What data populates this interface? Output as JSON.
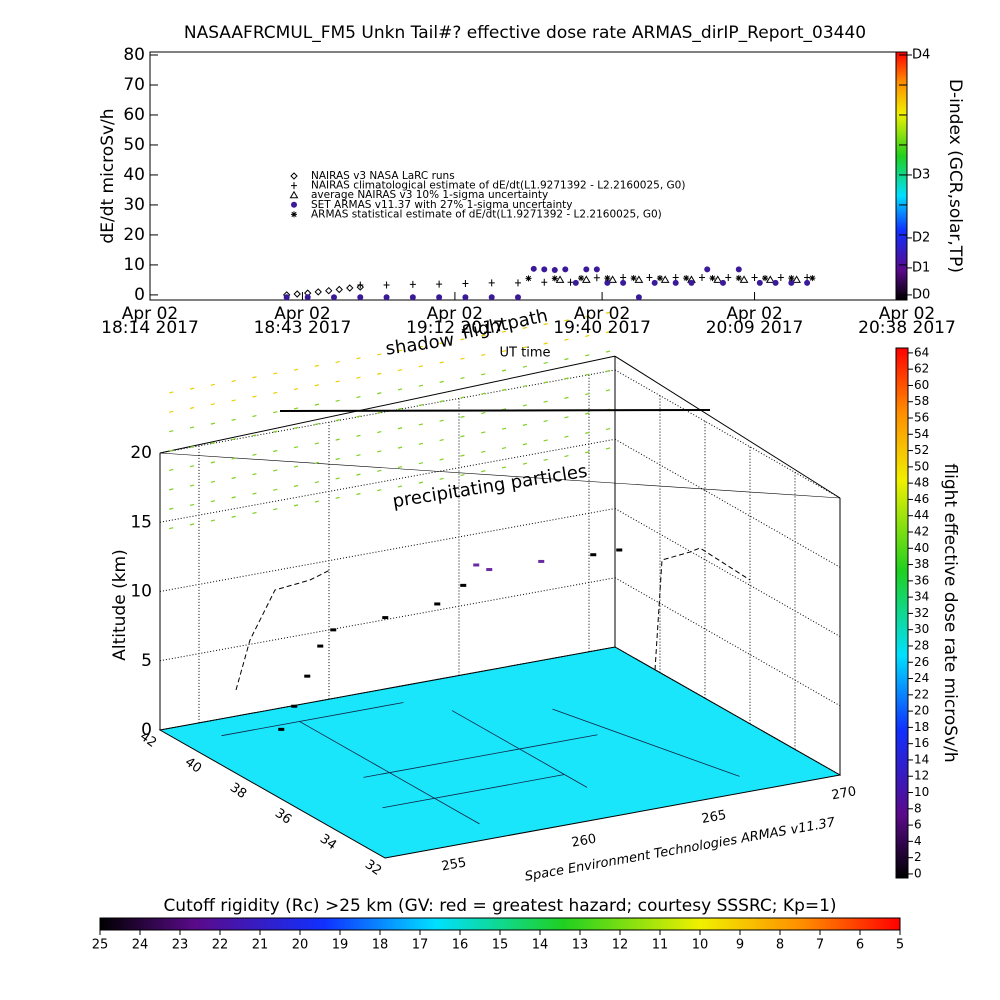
{
  "chart_data": [
    {
      "type": "line",
      "title": "NASAAFRCMUL_FM5 Unkn Tail#? effective dose rate ARMAS_dirIP_Report_03440",
      "y_label": "dE/dt microSv/h",
      "x_label": "UT time",
      "xlim": [
        0,
        144
      ],
      "xticks": [
        {
          "value": 0,
          "label": [
            "Apr 02",
            "18:14 2017"
          ]
        },
        {
          "value": 29,
          "label": [
            "Apr 02",
            "18:43 2017"
          ]
        },
        {
          "value": 58,
          "label": [
            "Apr 02",
            "19:12 2017"
          ]
        },
        {
          "value": 86,
          "label": [
            "Apr 02",
            "19:40 2017"
          ]
        },
        {
          "value": 115,
          "label": [
            "Apr 02",
            "20:09 2017"
          ]
        },
        {
          "value": 144,
          "label": [
            "Apr 02",
            "20:38 2017"
          ]
        }
      ],
      "ylim": [
        -1.7,
        81
      ],
      "yticks": [
        0,
        10,
        20,
        30,
        40,
        50,
        60,
        70,
        80
      ],
      "legend": "center",
      "series": [
        {
          "name": "NAIRAS v3 NASA LaRC runs",
          "marker": "diamond",
          "color": "#000000",
          "x": [
            26,
            28,
            30,
            32,
            34,
            36,
            38,
            40
          ],
          "values": [
            0,
            0.3,
            0.6,
            1,
            1.4,
            1.8,
            2.3,
            2.6
          ]
        },
        {
          "name": "NAIRAS climatological estimate of dE/dt(L1.9271392 - L2.2160025, G0)",
          "marker": "plus",
          "color": "#000000",
          "x": [
            40,
            45,
            50,
            55,
            60,
            65,
            70,
            75,
            80,
            85,
            90,
            95,
            100,
            105,
            110,
            115,
            120,
            125
          ],
          "values": [
            3.3,
            3.3,
            3.5,
            3.6,
            3.8,
            4,
            4,
            4.2,
            4.2,
            5.7,
            5.8,
            5.8,
            5.8,
            5.8,
            5.8,
            5.8,
            5.8,
            5.8
          ]
        },
        {
          "name": "average NAIRAS v3 10% 1-sigma uncertainty",
          "marker": "triangle",
          "color": "#000000",
          "x": [
            78,
            83,
            88,
            93,
            98,
            103,
            108,
            113,
            118,
            123
          ],
          "values": [
            5,
            5,
            5,
            5,
            5,
            5,
            5,
            5,
            5,
            5
          ]
        },
        {
          "name": "SET ARMAS v11.37 with 27% 1-sigma uncertainty",
          "marker": "circle",
          "color": "#3b1a9a",
          "x": [
            26,
            30,
            35,
            40,
            45,
            50,
            55,
            60,
            65,
            70,
            73,
            75,
            77,
            79,
            81,
            83,
            85,
            87,
            90,
            93,
            96,
            100,
            103,
            106,
            109,
            112,
            116,
            119,
            122,
            125
          ],
          "values": [
            -0.8,
            -0.8,
            -0.8,
            -0.8,
            -0.8,
            -0.8,
            -0.8,
            -0.8,
            -0.8,
            -0.8,
            8.7,
            8.5,
            8.3,
            8.5,
            4,
            8.5,
            8.5,
            4,
            4,
            -0.8,
            4,
            4,
            4,
            8.5,
            4,
            8.5,
            4,
            4,
            4,
            4
          ]
        },
        {
          "name": "ARMAS statistical estimate of dE/dt(L1.9271392 - L2.2160025, G0)",
          "marker": "asterisk",
          "color": "#000000",
          "x": [
            72,
            77,
            82,
            87,
            92,
            97,
            102,
            107,
            112,
            117,
            122,
            126
          ],
          "values": [
            5.5,
            5.5,
            5.6,
            5.6,
            5.6,
            5.6,
            5.6,
            5.6,
            5.6,
            5.6,
            5.6,
            5.6
          ]
        }
      ],
      "colorbar": {
        "label": "D-index (GCR,solar,TP)",
        "lim": [
          -1.7,
          81
        ],
        "ticks": [
          {
            "value": 0,
            "label": "D0"
          },
          {
            "value": 9,
            "label": "D1"
          },
          {
            "value": 19,
            "label": "D2"
          },
          {
            "value": 40,
            "label": "D3"
          },
          {
            "value": 80,
            "label": "D4"
          }
        ]
      }
    },
    {
      "type": "scatter3d",
      "z_label": "Altitude (km)",
      "zlim": [
        0,
        20
      ],
      "zticks": [
        0,
        5,
        10,
        15,
        20
      ],
      "latlim": [
        32,
        42
      ],
      "lat_ticks": [
        42,
        40,
        38,
        36,
        34,
        32
      ],
      "lonlim": [
        253.5,
        271
      ],
      "lon_ticks": [
        255,
        260,
        265,
        270
      ],
      "annotations": [
        "shadow",
        "flightpath",
        "precipitating particles"
      ],
      "credit": "Space Environment Technologies ARMAS v11.37",
      "flight": {
        "lon": [
          256,
          256.5,
          257,
          257.5,
          258,
          260,
          262,
          263,
          263.5,
          264,
          266,
          268,
          269
        ],
        "lat": [
          39.5,
          39.5,
          39.5,
          39.5,
          39.5,
          39.5,
          39.5,
          39.5,
          39.5,
          39.5,
          39.5,
          39.5,
          39.5
        ],
        "alt": [
          1.5,
          3,
          5,
          7,
          8,
          8.2,
          8.5,
          9.5,
          10.8,
          10.3,
          10.2,
          10,
          10
        ]
      },
      "colorbar": {
        "label": "flight effective dose rate microSv/h",
        "lim": [
          -0.5,
          64.6
        ],
        "ticks": [
          0,
          2,
          4,
          6,
          8,
          10,
          12,
          14,
          16,
          18,
          20,
          22,
          24,
          26,
          28,
          30,
          32,
          34,
          36,
          38,
          40,
          42,
          44,
          46,
          48,
          50,
          52,
          54,
          56,
          58,
          60,
          62,
          64
        ]
      }
    },
    {
      "type": "colorbar",
      "label": "Cutoff rigidity (Rc) >25 km (GV: red = greatest hazard; courtesy SSSRC; Kp=1)",
      "lim": [
        25,
        5
      ],
      "ticks": [
        25,
        24,
        23,
        22,
        21,
        20,
        19,
        18,
        17,
        16,
        15,
        14,
        13,
        12,
        11,
        10,
        9,
        8,
        7,
        6,
        5
      ]
    }
  ]
}
